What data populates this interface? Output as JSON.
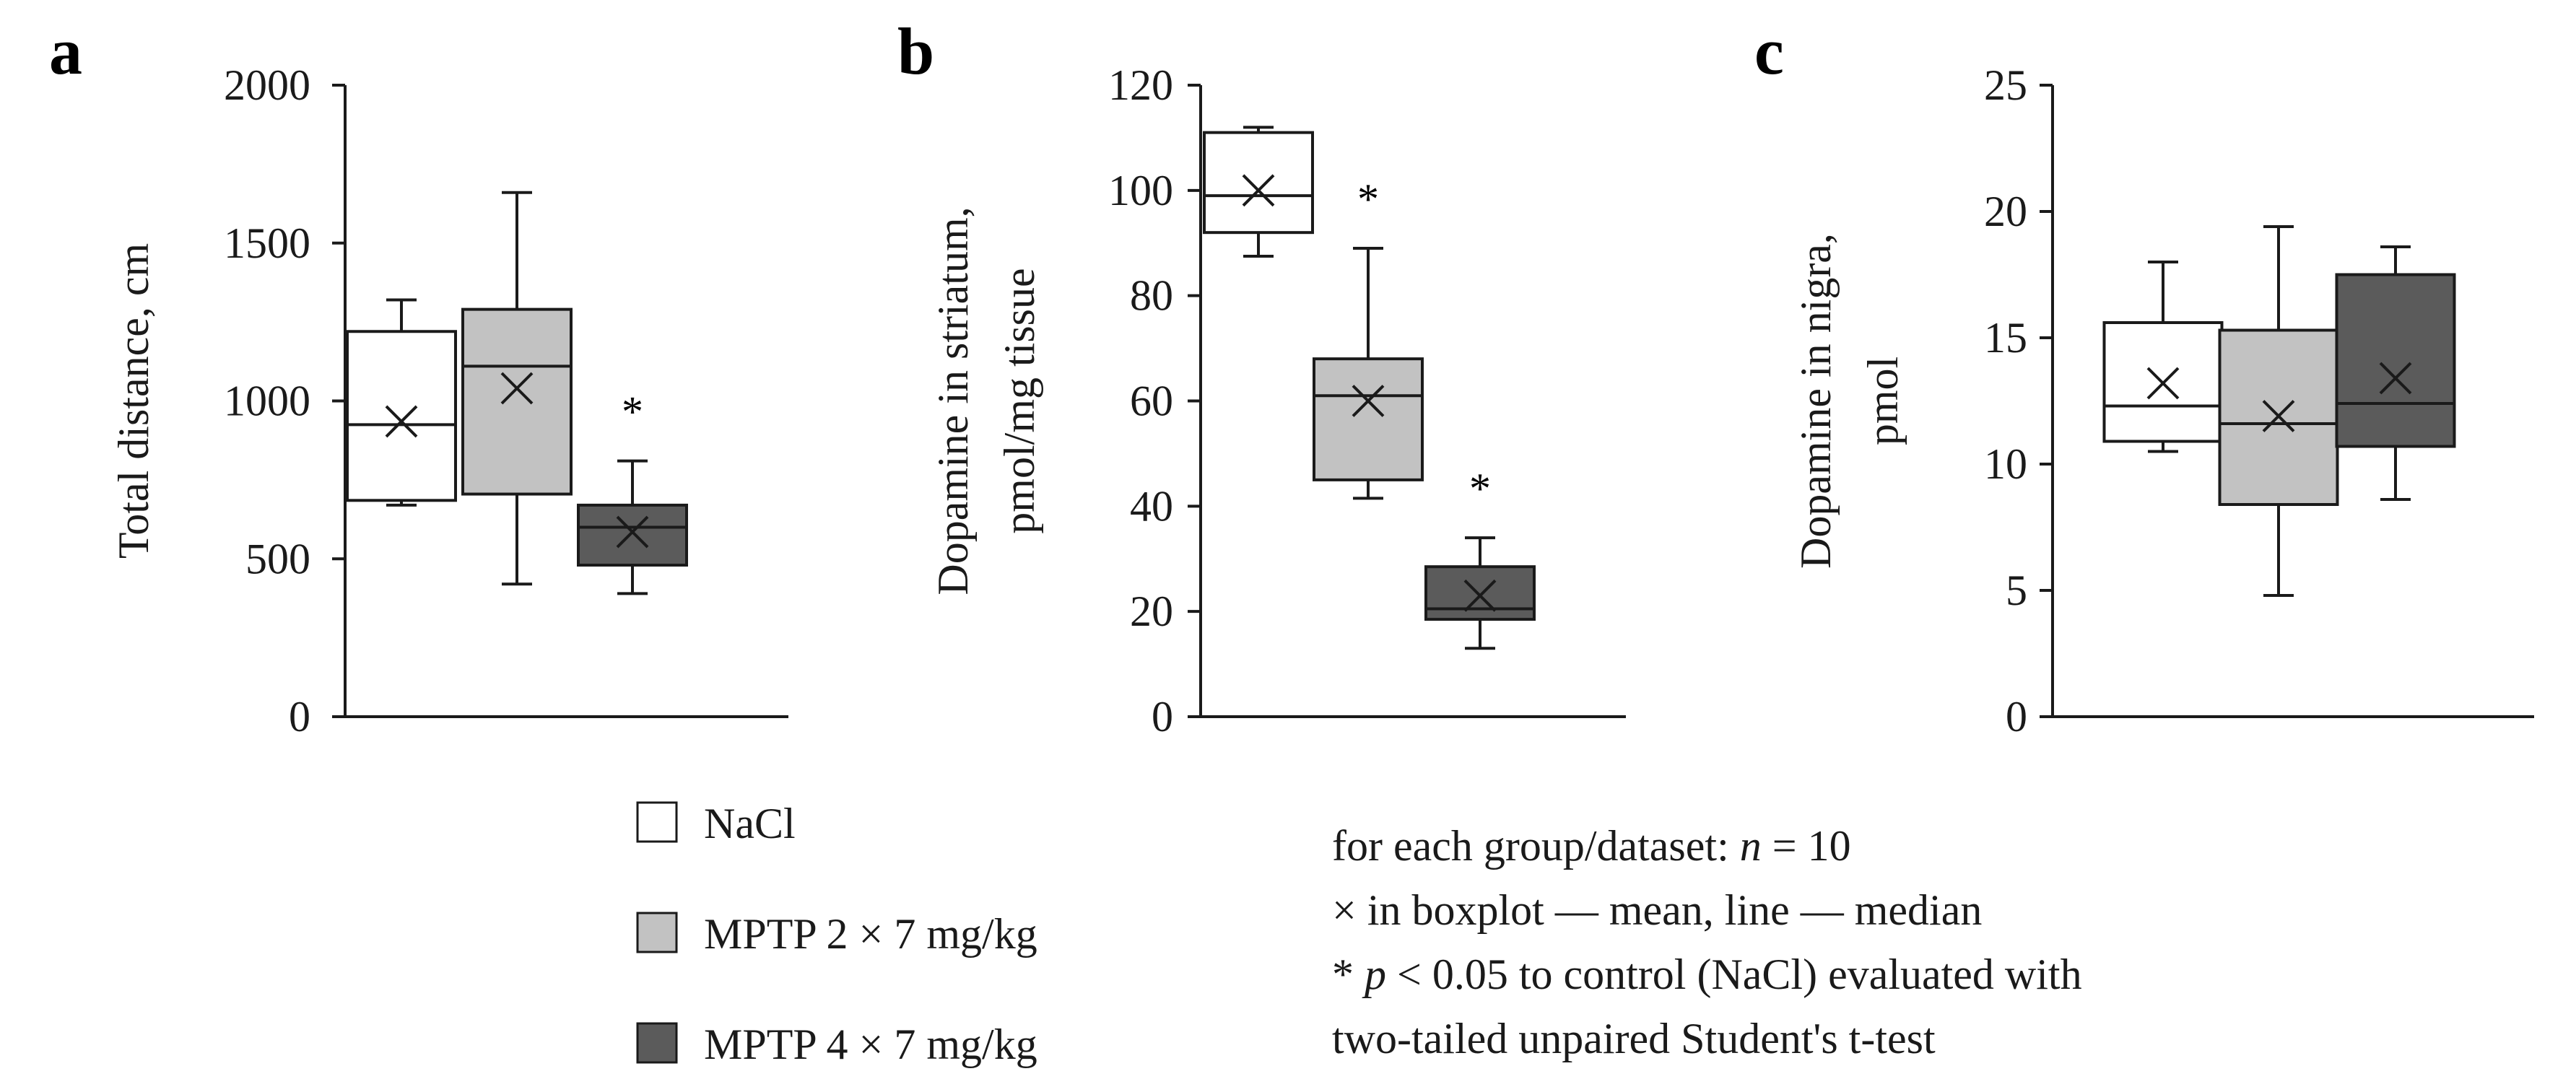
{
  "colors": {
    "nacl": "#ffffff",
    "mptp2": "#c2c2c2",
    "mptp4": "#5b5b5b",
    "stroke": "#1a1a1a"
  },
  "chart_data": [
    {
      "type": "box",
      "panel_letter": "a",
      "title": "",
      "ylabel": "Total distance, cm",
      "ylabel_lines": [
        "Total distance, cm"
      ],
      "xlabel": "",
      "ylim": [
        0,
        2000
      ],
      "yticks": [
        0,
        500,
        1000,
        1500,
        2000
      ],
      "groups": [
        {
          "name": "NaCl",
          "min": 670,
          "q1": 685,
          "median": 925,
          "q3": 1220,
          "max": 1320,
          "mean": 935,
          "significant": false
        },
        {
          "name": "MPTP 2 × 7 mg/kg",
          "min": 420,
          "q1": 705,
          "median": 1110,
          "q3": 1290,
          "max": 1660,
          "mean": 1040,
          "significant": false
        },
        {
          "name": "MPTP 4 × 7 mg/kg",
          "min": 390,
          "q1": 480,
          "median": 600,
          "q3": 670,
          "max": 810,
          "mean": 585,
          "significant": true
        }
      ]
    },
    {
      "type": "box",
      "panel_letter": "b",
      "title": "",
      "ylabel": "Dopamine in striatum, pmol/mg tissue",
      "ylabel_lines": [
        "Dopamine in striatum,",
        "pmol/mg tissue"
      ],
      "xlabel": "",
      "ylim": [
        0,
        120
      ],
      "yticks": [
        0,
        20,
        40,
        60,
        80,
        100,
        120
      ],
      "groups": [
        {
          "name": "NaCl",
          "min": 87.5,
          "q1": 92,
          "median": 99,
          "q3": 111,
          "max": 112,
          "mean": 100,
          "significant": false
        },
        {
          "name": "MPTP 2 × 7 mg/kg",
          "min": 41.5,
          "q1": 45,
          "median": 61,
          "q3": 68,
          "max": 89,
          "mean": 60,
          "significant": true
        },
        {
          "name": "MPTP 4 × 7 mg/kg",
          "min": 13,
          "q1": 18.5,
          "median": 20.5,
          "q3": 28.5,
          "max": 34,
          "mean": 23,
          "significant": true
        }
      ]
    },
    {
      "type": "box",
      "panel_letter": "c",
      "title": "",
      "ylabel": "Dopamine in nigra, pmol",
      "ylabel_lines": [
        "Dopamine in nigra,",
        "pmol"
      ],
      "xlabel": "",
      "ylim": [
        0,
        25
      ],
      "yticks": [
        0,
        5,
        10,
        15,
        20,
        25
      ],
      "groups": [
        {
          "name": "NaCl",
          "min": 10.5,
          "q1": 10.9,
          "median": 12.3,
          "q3": 15.6,
          "max": 18,
          "mean": 13.2,
          "significant": false
        },
        {
          "name": "MPTP 2 × 7 mg/kg",
          "min": 4.8,
          "q1": 8.4,
          "median": 11.6,
          "q3": 15.3,
          "max": 19.4,
          "mean": 11.9,
          "significant": false
        },
        {
          "name": "MPTP 4 × 7 mg/kg",
          "min": 8.6,
          "q1": 10.7,
          "median": 12.4,
          "q3": 17.5,
          "max": 18.6,
          "mean": 13.4,
          "significant": false
        }
      ]
    }
  ],
  "legend": {
    "items": [
      {
        "label": "NaCl",
        "color_key": "nacl"
      },
      {
        "label": "MPTP 2 × 7 mg/kg",
        "color_key": "mptp2"
      },
      {
        "label": "MPTP 4 × 7 mg/kg",
        "color_key": "mptp4"
      }
    ]
  },
  "significance_marker": "*",
  "notes": {
    "line1_pre": "for each group/dataset: ",
    "line1_n": "n",
    "line1_post": " = 10",
    "line2": "× in boxplot — mean, line — median",
    "line3_pre": "* ",
    "line3_p": "p",
    "line3_post": " < 0.05 to control (NaCl) evaluated with",
    "line4": "two-tailed unpaired Student's t-test"
  }
}
